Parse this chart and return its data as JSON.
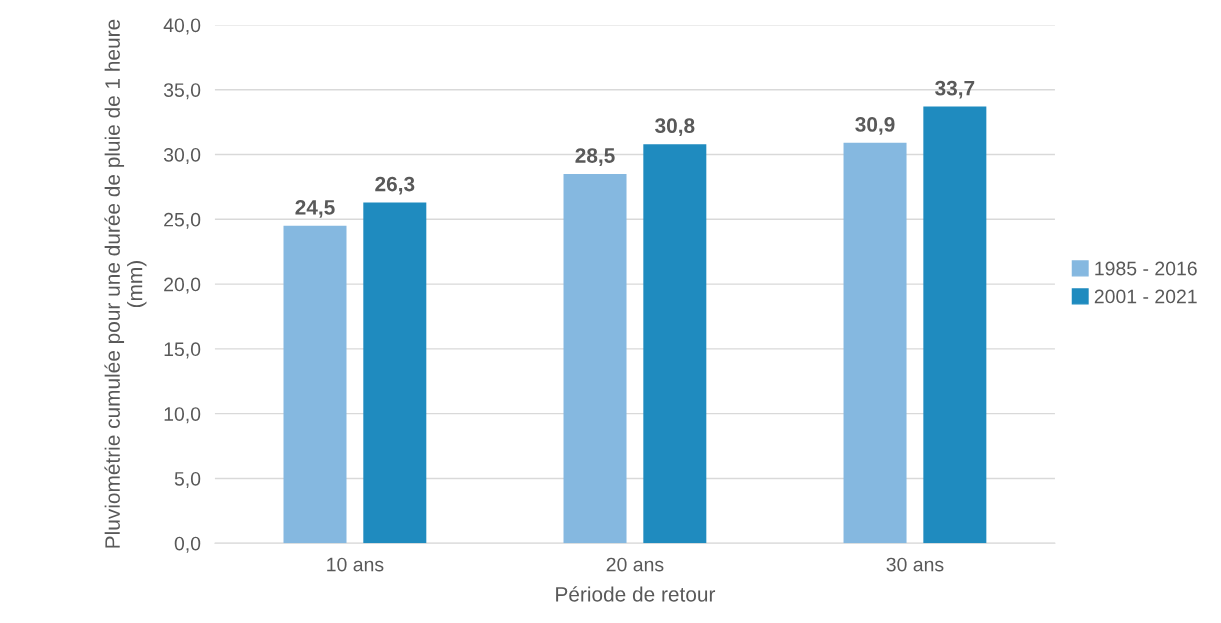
{
  "chart_data": {
    "type": "bar",
    "xlabel": "Période de retour",
    "ylabel": "Pluviométrie cumulée pour une durée de pluie de 1 heure (mm)",
    "categories": [
      "10 ans",
      "20 ans",
      "30 ans"
    ],
    "series": [
      {
        "name": "1985 - 2016",
        "color": "#85b8e0",
        "values": [
          24.5,
          28.5,
          30.9
        ],
        "value_labels": [
          "24,5",
          "28,5",
          "30,9"
        ]
      },
      {
        "name": "2001 - 2021",
        "color": "#1f8bbf",
        "values": [
          26.3,
          30.8,
          33.7
        ],
        "value_labels": [
          "26,3",
          "30,8",
          "33,7"
        ]
      }
    ],
    "ylim": [
      0,
      40
    ],
    "yticks": [
      {
        "value": 0,
        "label": "0,0"
      },
      {
        "value": 5,
        "label": "5,0"
      },
      {
        "value": 10,
        "label": "10,0"
      },
      {
        "value": 15,
        "label": "15,0"
      },
      {
        "value": 20,
        "label": "20,0"
      },
      {
        "value": 25,
        "label": "25,0"
      },
      {
        "value": 30,
        "label": "30,0"
      },
      {
        "value": 35,
        "label": "35,0"
      },
      {
        "value": 40,
        "label": "40,0"
      }
    ],
    "grid": "y",
    "legend": "right"
  }
}
